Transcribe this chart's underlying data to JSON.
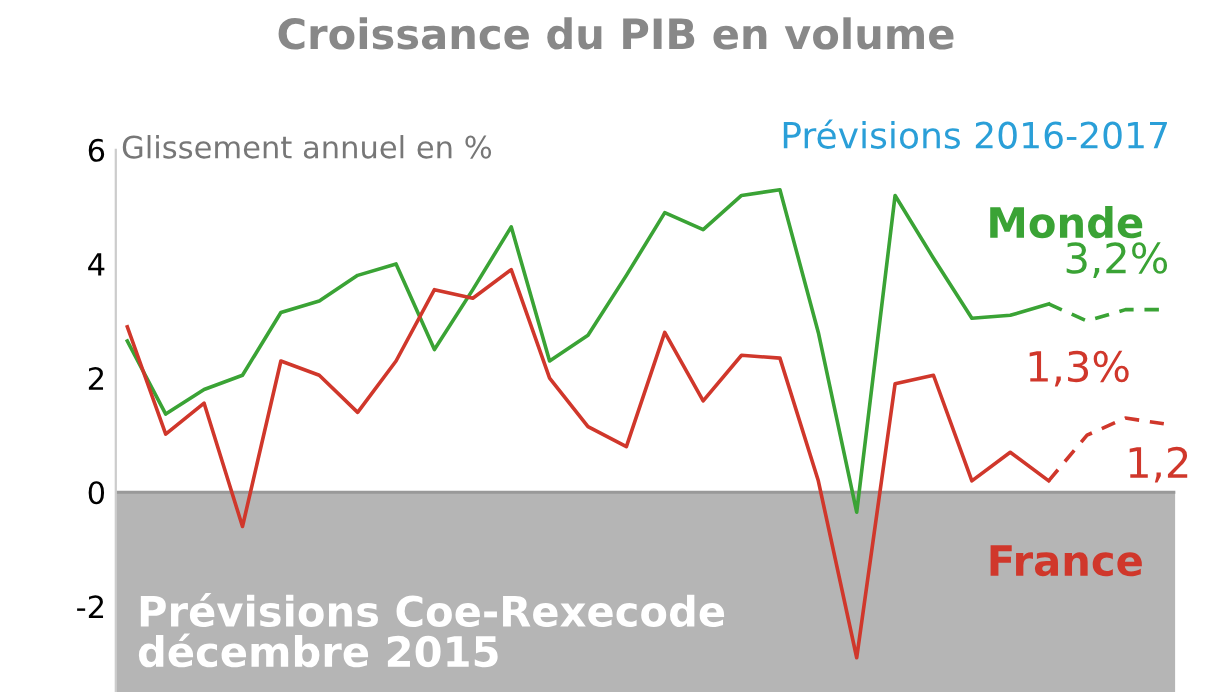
{
  "chart_data": {
    "type": "line",
    "title": "Croissance du PIB en volume",
    "ylabel": "Glissement annuel en %",
    "categories": [
      null,
      null,
      null,
      null,
      null,
      null,
      null,
      null,
      null,
      null,
      null,
      null,
      null,
      null,
      null,
      null,
      null,
      null,
      null,
      null,
      null,
      null,
      null,
      null,
      null,
      null,
      null,
      null
    ],
    "series": [
      {
        "name": "Monde",
        "color": "#3aa335",
        "line_style": "solid",
        "values": [
          2.65,
          1.37,
          1.8,
          2.05,
          3.15,
          3.35,
          3.8,
          4.0,
          2.5,
          3.55,
          4.65,
          2.3,
          2.75,
          3.8,
          4.9,
          4.6,
          5.2,
          5.3,
          2.8,
          -0.35,
          5.2,
          4.1,
          3.05,
          3.1,
          3.3,
          null,
          null,
          null
        ]
      },
      {
        "name": "France",
        "color": "#d0372b",
        "line_style": "solid",
        "values": [
          2.9,
          1.02,
          1.56,
          -0.6,
          2.3,
          2.05,
          1.4,
          2.3,
          3.55,
          3.4,
          3.9,
          2.0,
          1.15,
          0.8,
          2.8,
          1.6,
          2.4,
          2.35,
          0.2,
          -2.9,
          1.9,
          2.05,
          0.2,
          0.7,
          0.2,
          null,
          null,
          null
        ]
      },
      {
        "color": "#3aa335",
        "line_style": "dashed",
        "values": [
          null,
          null,
          null,
          null,
          null,
          null,
          null,
          null,
          null,
          null,
          null,
          null,
          null,
          null,
          null,
          null,
          null,
          null,
          null,
          null,
          null,
          null,
          null,
          null,
          3.3,
          3.0,
          3.2,
          3.2
        ],
        "value_labels": [
          null,
          null,
          null,
          null,
          null,
          null,
          null,
          null,
          null,
          null,
          null,
          null,
          null,
          null,
          null,
          null,
          null,
          null,
          null,
          null,
          null,
          null,
          null,
          null,
          null,
          null,
          null,
          "3,2%"
        ]
      },
      {
        "color": "#d0372b",
        "line_style": "dashed",
        "values": [
          null,
          null,
          null,
          null,
          null,
          null,
          null,
          null,
          null,
          null,
          null,
          null,
          null,
          null,
          null,
          null,
          null,
          null,
          null,
          null,
          null,
          null,
          null,
          null,
          0.2,
          1.0,
          1.3,
          1.2
        ],
        "value_labels": [
          null,
          null,
          null,
          null,
          null,
          null,
          null,
          null,
          null,
          null,
          null,
          null,
          null,
          null,
          null,
          null,
          null,
          null,
          null,
          null,
          null,
          null,
          null,
          null,
          null,
          null,
          "1,3%",
          "1,2"
        ]
      }
    ],
    "ylim": [
      -3.5,
      6.2
    ],
    "yticks": [
      6,
      4,
      2,
      0,
      {
        "value": -2,
        "label": "-2"
      }
    ],
    "tick_labels": "y",
    "grid": false,
    "legend": false,
    "marker": "none",
    "bands": [
      {
        "axis": "y",
        "from": -3.5,
        "to": 0,
        "color": "#b5b5b5"
      }
    ],
    "ref_lines": [
      {
        "axis": "y",
        "value": 0,
        "color": "#999999"
      }
    ],
    "annotations": [
      "Prévisions 2016-2017",
      "Prévisions Coe-Rexecode\ndécembre 2015"
    ]
  }
}
